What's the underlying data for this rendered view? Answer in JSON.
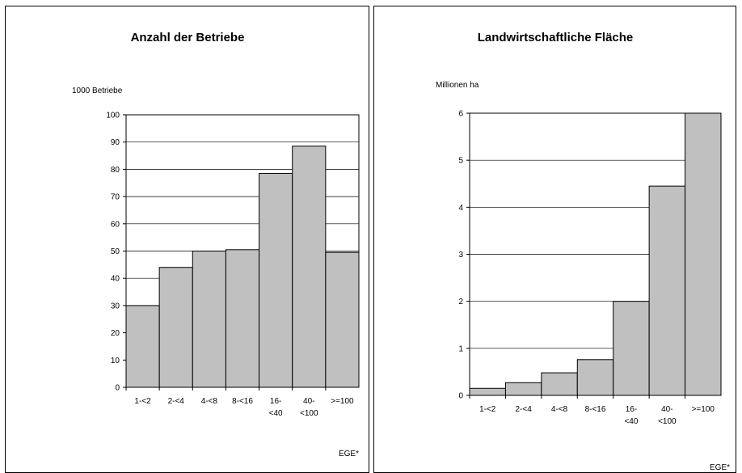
{
  "chart_data": [
    {
      "type": "bar",
      "title": "Anzahl der Betriebe",
      "ylabel": "1000 Betriebe",
      "xlabel": "EGE*",
      "categories": [
        [
          "1-<2"
        ],
        [
          "2-<4"
        ],
        [
          "4-<8"
        ],
        [
          "8-<16"
        ],
        [
          "16-",
          "<40"
        ],
        [
          "40-",
          "<100"
        ],
        [
          ">=100"
        ]
      ],
      "values": [
        30,
        44,
        50,
        50.5,
        78.5,
        88.5,
        49.5
      ],
      "ylim": [
        0,
        100
      ],
      "yticks": [
        "0",
        "10",
        "20",
        "30",
        "40",
        "50",
        "60",
        "70",
        "80",
        "90",
        "100"
      ],
      "grid": true,
      "bar_color": "#c0c0c0"
    },
    {
      "type": "bar",
      "title": "Landwirtschaftliche Fläche",
      "ylabel": "Millionen ha",
      "xlabel": "EGE*",
      "categories": [
        [
          "1-<2"
        ],
        [
          "2-<4"
        ],
        [
          "4-<8"
        ],
        [
          "8-<16"
        ],
        [
          "16-",
          "<40"
        ],
        [
          "40-",
          "<100"
        ],
        [
          ">=100"
        ]
      ],
      "values": [
        0.15,
        0.27,
        0.48,
        0.76,
        2.0,
        4.45,
        6.0
      ],
      "ylim": [
        0,
        6
      ],
      "yticks": [
        "0",
        "1",
        "2",
        "3",
        "4",
        "5",
        "6"
      ],
      "grid": true,
      "bar_color": "#c0c0c0"
    }
  ]
}
